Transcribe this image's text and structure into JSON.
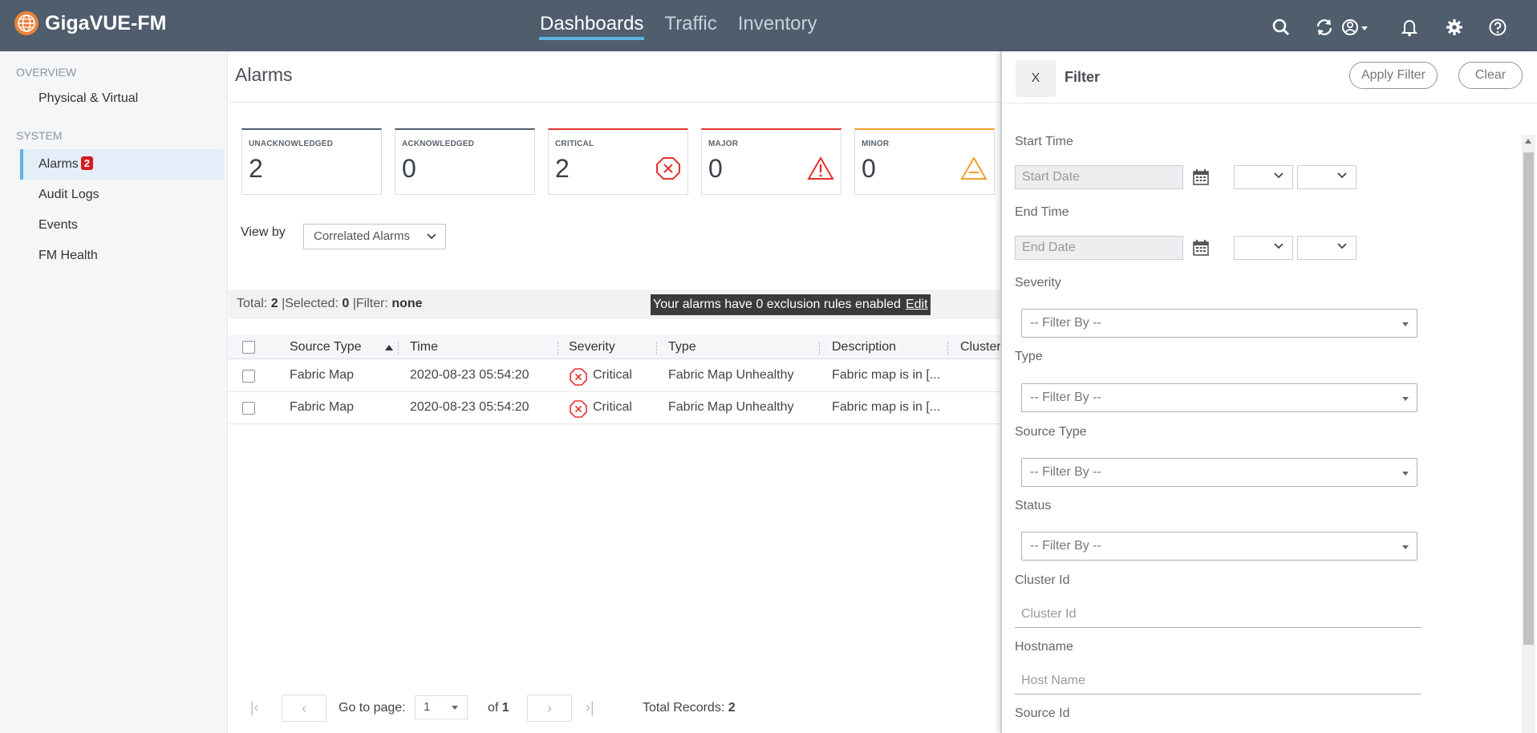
{
  "header": {
    "app_name": "GigaVUE-FM",
    "nav": [
      {
        "label": "Dashboards",
        "active": true
      },
      {
        "label": "Traffic",
        "active": false
      },
      {
        "label": "Inventory",
        "active": false
      }
    ],
    "icons": [
      "search-icon",
      "refresh-icon",
      "user-icon",
      "bell-icon",
      "gear-icon",
      "help-icon"
    ]
  },
  "sidebar": {
    "overview_title": "OVERVIEW",
    "overview_items": [
      {
        "label": "Physical & Virtual"
      }
    ],
    "system_title": "SYSTEM",
    "system_items": [
      {
        "label": "Alarms",
        "badge": "2",
        "active": true
      },
      {
        "label": "Audit Logs"
      },
      {
        "label": "Events"
      },
      {
        "label": "FM Health"
      }
    ]
  },
  "main": {
    "title": "Alarms",
    "cards": [
      {
        "label": "UNACKNOWLEDGED",
        "value": "2",
        "color": "#4f5d6d"
      },
      {
        "label": "ACKNOWLEDGED",
        "value": "0",
        "color": "#4f5d6d"
      },
      {
        "label": "CRITICAL",
        "value": "2",
        "color": "#e5322d",
        "icon": "critical-octagon-icon"
      },
      {
        "label": "MAJOR",
        "value": "0",
        "color": "#e5322d",
        "icon": "major-triangle-icon"
      },
      {
        "label": "MINOR",
        "value": "0",
        "color": "#f0a030",
        "icon": "minor-triangle-icon"
      }
    ],
    "view_by_label": "View by",
    "view_by_value": "Correlated Alarms",
    "info": {
      "total_label": "Total:",
      "total": "2",
      "selected_label": "|Selected:",
      "selected": "0",
      "filter_label": "|Filter:",
      "filter": "none",
      "exclusion_text": "Your alarms have 0 exclusion rules enabled",
      "edit_label": "Edit"
    },
    "table": {
      "columns": [
        "Source Type",
        "Time",
        "Severity",
        "Type",
        "Description",
        "Cluster"
      ],
      "rows": [
        {
          "source_type": "Fabric Map",
          "time": "2020-08-23 05:54:20",
          "severity": "Critical",
          "type": "Fabric Map Unhealthy",
          "description": "Fabric map is in [..."
        },
        {
          "source_type": "Fabric Map",
          "time": "2020-08-23 05:54:20",
          "severity": "Critical",
          "type": "Fabric Map Unhealthy",
          "description": "Fabric map is in [..."
        }
      ]
    },
    "pager": {
      "go_to_label": "Go to page:",
      "page": "1",
      "of_label": "of",
      "of_value": "1",
      "total_records_label": "Total Records:",
      "total_records": "2"
    }
  },
  "filter": {
    "close_label": "X",
    "title": "Filter",
    "apply_label": "Apply Filter",
    "clear_label": "Clear",
    "start_time_label": "Start Time",
    "start_date_placeholder": "Start Date",
    "end_time_label": "End Time",
    "end_date_placeholder": "End Date",
    "severity_label": "Severity",
    "type_label": "Type",
    "source_type_label": "Source Type",
    "status_label": "Status",
    "filter_by_placeholder": "-- Filter By --",
    "cluster_id_label": "Cluster Id",
    "cluster_id_placeholder": "Cluster Id",
    "hostname_label": "Hostname",
    "hostname_placeholder": "Host Name",
    "source_id_label": "Source Id"
  }
}
